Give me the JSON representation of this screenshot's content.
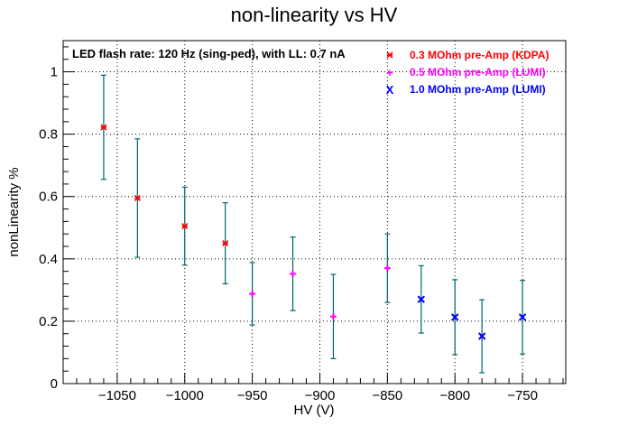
{
  "chart_data": {
    "type": "scatter",
    "title": "non-linearity vs HV",
    "xlabel": "HV (V)",
    "ylabel": "nonLinearity %",
    "xlim": [
      -1090,
      -718
    ],
    "ylim": [
      0,
      1.1
    ],
    "xticks": [
      -1050,
      -1000,
      -950,
      -900,
      -850,
      -800,
      -750
    ],
    "yticks": [
      0,
      0.2,
      0.4,
      0.6,
      0.8,
      1
    ],
    "grid": true,
    "annotation": "LED flash rate: 120 Hz  (sing-ped), with LL: 0.7 nA",
    "legend_position": "top-right",
    "errorbar_color": "#006666",
    "series": [
      {
        "name": "0.3 MOhm pre-Amp (KDPA)",
        "marker": "*",
        "color": "#ff0000",
        "points": [
          {
            "x": -1060,
            "y": 0.822,
            "err": 0.167
          },
          {
            "x": -1035,
            "y": 0.595,
            "err": 0.19
          },
          {
            "x": -1000,
            "y": 0.505,
            "err": 0.125
          },
          {
            "x": -970,
            "y": 0.45,
            "err": 0.13
          }
        ]
      },
      {
        "name": "0.5 MOhm pre-Amp (LUMI)",
        "marker": "+",
        "color": "#ff00ff",
        "points": [
          {
            "x": -950,
            "y": 0.288,
            "err": 0.1
          },
          {
            "x": -920,
            "y": 0.352,
            "err": 0.118
          },
          {
            "x": -890,
            "y": 0.215,
            "err": 0.135
          },
          {
            "x": -850,
            "y": 0.37,
            "err": 0.11
          }
        ]
      },
      {
        "name": "1.0 MOhm pre-Amp (LUMI)",
        "marker": "X",
        "color": "#0000ff",
        "points": [
          {
            "x": -825,
            "y": 0.27,
            "err": 0.108
          },
          {
            "x": -800,
            "y": 0.213,
            "err": 0.12
          },
          {
            "x": -780,
            "y": 0.152,
            "err": 0.117
          },
          {
            "x": -750,
            "y": 0.213,
            "err": 0.118
          }
        ]
      }
    ]
  }
}
